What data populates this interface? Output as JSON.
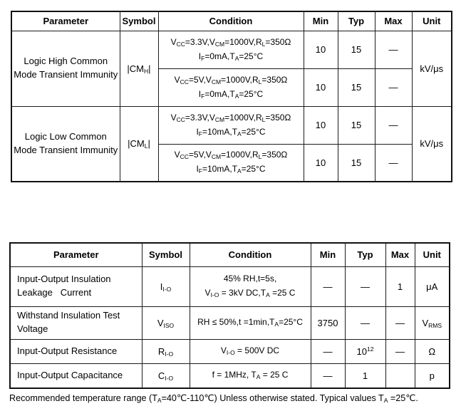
{
  "table1": {
    "headers": {
      "parameter": "Parameter",
      "symbol": "Symbol",
      "condition": "Condition",
      "min": "Min",
      "typ": "Typ",
      "max": "Max",
      "unit": "Unit"
    },
    "groups": [
      {
        "param": "Logic High Common Mode Transient Immunity",
        "symbol": [
          {
            "t": "|CM"
          },
          {
            "s": "H"
          },
          {
            "t": "|"
          }
        ],
        "unit": "kV/μs",
        "rows": [
          {
            "cond": [
              {
                "t": "V"
              },
              {
                "s": "CC"
              },
              {
                "t": "=3.3V,V"
              },
              {
                "s": "CM"
              },
              {
                "t": "=1000V,R"
              },
              {
                "s": "L"
              },
              {
                "t": "=350Ω"
              },
              {
                "b": true
              },
              {
                "t": "I"
              },
              {
                "s": "F"
              },
              {
                "t": "=0mA,T"
              },
              {
                "s": "A"
              },
              {
                "t": "=25°C"
              }
            ],
            "min": "10",
            "typ": "15",
            "max": "—"
          },
          {
            "cond": [
              {
                "t": "V"
              },
              {
                "s": "CC"
              },
              {
                "t": "=5V,V"
              },
              {
                "s": "CM"
              },
              {
                "t": "=1000V,R"
              },
              {
                "s": "L"
              },
              {
                "t": "=350Ω"
              },
              {
                "b": true
              },
              {
                "t": "I"
              },
              {
                "s": "F"
              },
              {
                "t": "=0mA,T"
              },
              {
                "s": "A"
              },
              {
                "t": "=25°C"
              }
            ],
            "min": "10",
            "typ": "15",
            "max": "—"
          }
        ]
      },
      {
        "param": "Logic Low Common Mode Transient Immunity",
        "symbol": [
          {
            "t": "|CM"
          },
          {
            "s": "L"
          },
          {
            "t": "|"
          }
        ],
        "unit": "kV/μs",
        "rows": [
          {
            "cond": [
              {
                "t": "V"
              },
              {
                "s": "CC"
              },
              {
                "t": "=3.3V,V"
              },
              {
                "s": "CM"
              },
              {
                "t": "=1000V,R"
              },
              {
                "s": "L"
              },
              {
                "t": "=350Ω"
              },
              {
                "b": true
              },
              {
                "t": "I"
              },
              {
                "s": "F"
              },
              {
                "t": "=10mA,T"
              },
              {
                "s": "A"
              },
              {
                "t": "=25°C"
              }
            ],
            "min": "10",
            "typ": "15",
            "max": "—"
          },
          {
            "cond": [
              {
                "t": "V"
              },
              {
                "s": "CC"
              },
              {
                "t": "=5V,V"
              },
              {
                "s": "CM"
              },
              {
                "t": "=1000V,R"
              },
              {
                "s": "L"
              },
              {
                "t": "=350Ω"
              },
              {
                "b": true
              },
              {
                "t": "I"
              },
              {
                "s": "F"
              },
              {
                "t": "=10mA,T"
              },
              {
                "s": "A"
              },
              {
                "t": "=25°C"
              }
            ],
            "min": "10",
            "typ": "15",
            "max": "—"
          }
        ]
      }
    ]
  },
  "table2": {
    "headers": {
      "parameter": "Parameter",
      "symbol": "Symbol",
      "condition": "Condition",
      "min": "Min",
      "typ": "Typ",
      "max": "Max",
      "unit": "Unit"
    },
    "rows": [
      {
        "param": [
          {
            "t": "Input-Output Insulation"
          },
          {
            "b": true
          },
          {
            "t": "Leakage   Current"
          }
        ],
        "symbol": [
          {
            "t": "I"
          },
          {
            "s": "I-O"
          }
        ],
        "cond": [
          {
            "t": "45% RH,t=5s,"
          },
          {
            "b": true
          },
          {
            "t": "V"
          },
          {
            "s": "I-O"
          },
          {
            "t": " = 3kV DC,T"
          },
          {
            "s": "A"
          },
          {
            "t": " =25 C"
          }
        ],
        "min": "—",
        "typ": [
          {
            "t": "—"
          }
        ],
        "max": "1",
        "unit": [
          {
            "t": "μA"
          }
        ]
      },
      {
        "param": [
          {
            "t": "Withstand Insulation Test"
          },
          {
            "b": true
          },
          {
            "t": "Voltage"
          }
        ],
        "symbol": [
          {
            "t": "V"
          },
          {
            "s": "ISO"
          }
        ],
        "cond": [
          {
            "t": "RH ≤ 50%,t =1min,T"
          },
          {
            "s": "A"
          },
          {
            "t": "=25°C"
          }
        ],
        "min": "3750",
        "typ": [
          {
            "t": "—"
          }
        ],
        "max": "—",
        "unit": [
          {
            "t": "V"
          },
          {
            "s": "RMS"
          }
        ]
      },
      {
        "param": [
          {
            "t": "Input-Output Resistance"
          }
        ],
        "symbol": [
          {
            "t": "R"
          },
          {
            "s": "I-O"
          }
        ],
        "cond": [
          {
            "t": "V"
          },
          {
            "s": "I-O"
          },
          {
            "t": " = 500V DC"
          }
        ],
        "min": "—",
        "typ": [
          {
            "t": "10"
          },
          {
            "u": "12"
          }
        ],
        "max": "—",
        "unit": [
          {
            "t": "Ω"
          }
        ]
      },
      {
        "param": [
          {
            "t": "Input-Output Capacitance"
          }
        ],
        "symbol": [
          {
            "t": "C"
          },
          {
            "s": "I-O"
          }
        ],
        "cond": [
          {
            "t": "f = 1MHz, T"
          },
          {
            "s": "A"
          },
          {
            "t": " = 25 C"
          }
        ],
        "min": "—",
        "typ": [
          {
            "t": "1"
          }
        ],
        "max": "",
        "unit": [
          {
            "t": "p"
          }
        ]
      }
    ]
  },
  "footer": [
    {
      "t": "Recommended temperature range (T"
    },
    {
      "s": "A"
    },
    {
      "t": "=40℃-110℃) Unless otherwise stated. Typical values T"
    },
    {
      "s": "A"
    },
    {
      "t": " =25℃."
    }
  ]
}
